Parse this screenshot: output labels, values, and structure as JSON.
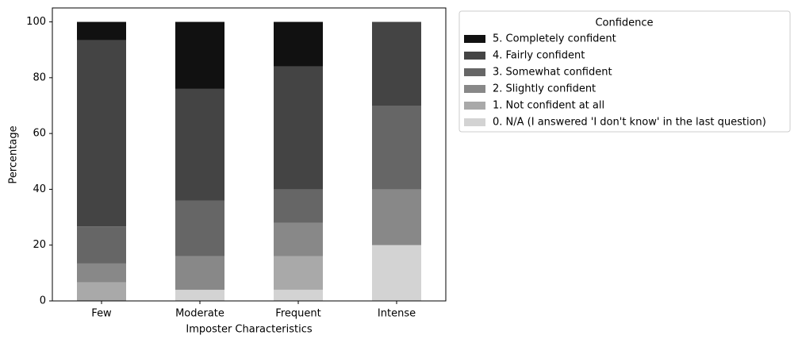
{
  "chart_data": {
    "type": "stacked-bar",
    "xlabel": "Imposter Characteristics",
    "ylabel": "Percentage",
    "legend_title": "Confidence",
    "legend_position": "outside upper right",
    "categories": [
      "Few",
      "Moderate",
      "Frequent",
      "Intense"
    ],
    "series": [
      {
        "name": "0. N/A (I answered 'I don't know' in the last question)",
        "color": "#d3d3d3",
        "values": [
          0,
          4,
          4,
          20
        ]
      },
      {
        "name": "1. Not confident at all",
        "color": "#a9a9a9",
        "values": [
          6.7,
          0,
          12,
          0
        ]
      },
      {
        "name": "2. Slightly confident",
        "color": "#888888",
        "values": [
          6.7,
          12,
          12,
          20
        ]
      },
      {
        "name": "3. Somewhat confident",
        "color": "#666666",
        "values": [
          13.3,
          20,
          12,
          30
        ]
      },
      {
        "name": "4. Fairly confident",
        "color": "#444444",
        "values": [
          66.7,
          40,
          44,
          30
        ]
      },
      {
        "name": "5. Completely confident",
        "color": "#111111",
        "values": [
          6.6,
          24,
          16,
          0
        ]
      }
    ],
    "ylim": [
      0,
      105
    ],
    "yticks": [
      0,
      20,
      40,
      60,
      80,
      100
    ]
  }
}
